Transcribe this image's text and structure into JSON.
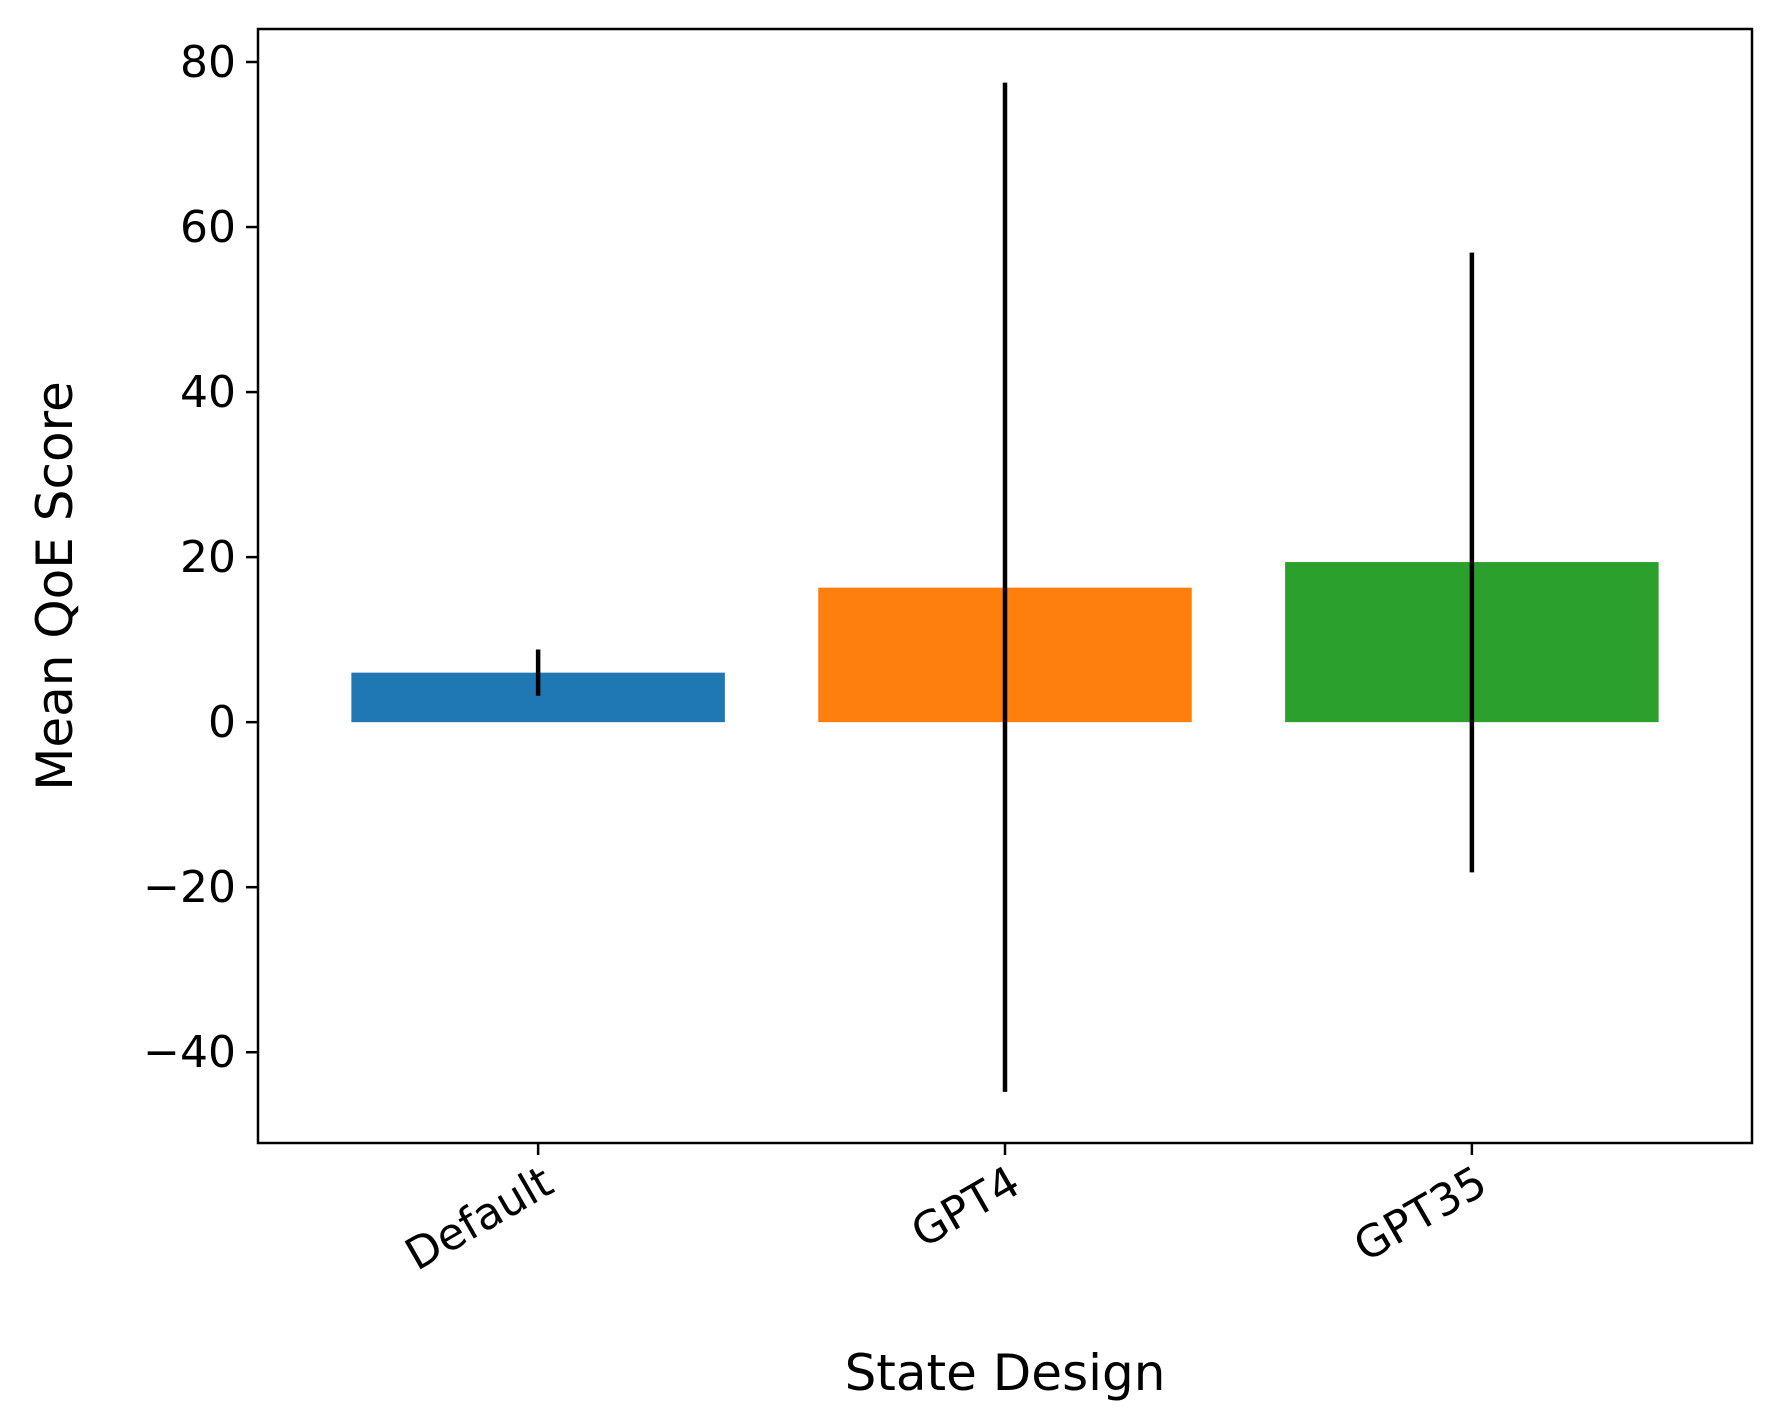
{
  "chart_data": {
    "type": "bar",
    "title": "",
    "xlabel": "State Design",
    "ylabel": "Mean QoE Score",
    "categories": [
      "Default",
      "GPT4",
      "GPT35"
    ],
    "values": [
      6.0,
      16.3,
      19.4
    ],
    "error_low": [
      3.2,
      -44.8,
      -18.2
    ],
    "error_high": [
      8.8,
      77.5,
      56.9
    ],
    "colors": [
      "#1f77b4",
      "#ff7f0e",
      "#2ca02c"
    ],
    "error_color": "#000000",
    "ylim": [
      -51,
      84
    ],
    "yticks": [
      -40,
      -20,
      0,
      20,
      40,
      60,
      80
    ],
    "ytick_labels": [
      "−40",
      "−20",
      "0",
      "20",
      "40",
      "60",
      "80"
    ],
    "xtick_rotation": -30,
    "grid": false,
    "legend": "none"
  }
}
